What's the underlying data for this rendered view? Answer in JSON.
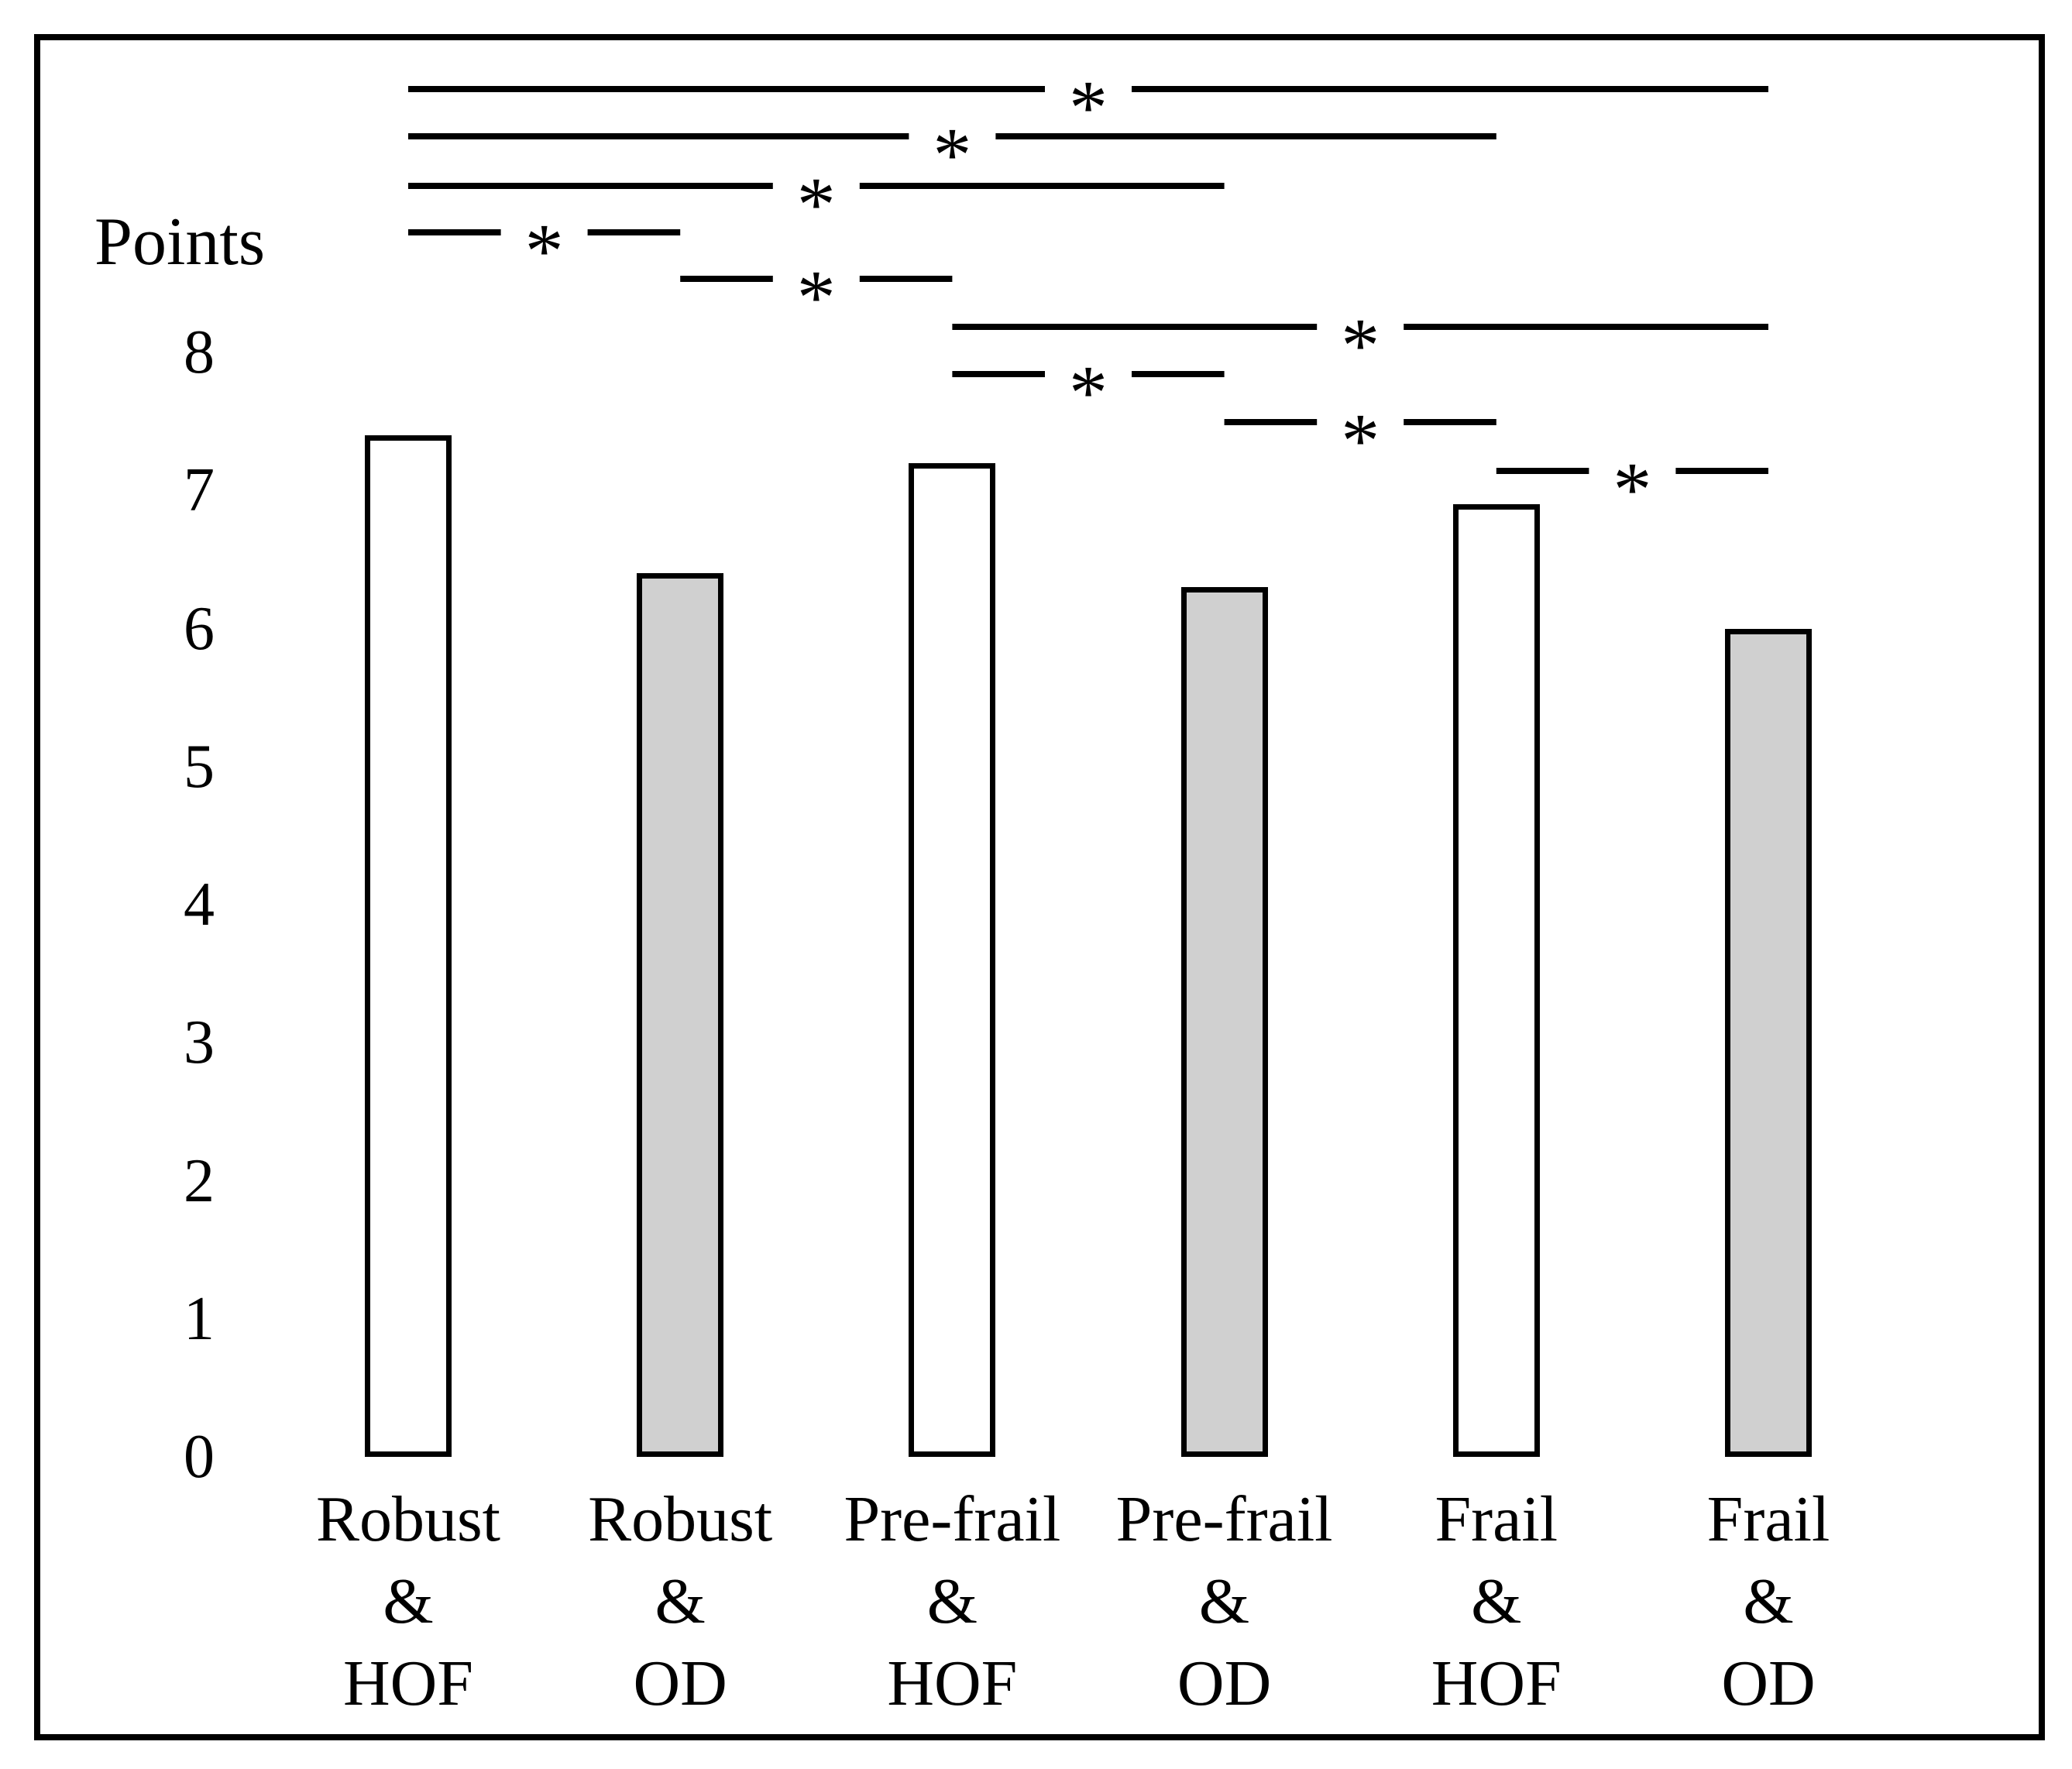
{
  "chart_data": {
    "type": "bar",
    "title": "",
    "ylabel": "Points",
    "ylim": [
      0,
      8
    ],
    "yticks": [
      "0",
      "1",
      "2",
      "3",
      "4",
      "5",
      "6",
      "7",
      "8"
    ],
    "categories": [
      "Robust & HOF",
      "Robust & OD",
      "Pre-frail & HOF",
      "Pre-frail & OD",
      "Frail & HOF",
      "Frail & OD"
    ],
    "category_label_lines": [
      [
        "Robust",
        "&",
        "HOF"
      ],
      [
        "Robust",
        "&",
        "OD"
      ],
      [
        "Pre-frail",
        "&",
        "HOF"
      ],
      [
        "Pre-frail",
        "&",
        "OD"
      ],
      [
        "Frail",
        "&",
        "HOF"
      ],
      [
        "Frail",
        "&",
        "OD"
      ]
    ],
    "series": [
      {
        "name": "Points",
        "values": [
          7.4,
          6.4,
          7.2,
          6.3,
          6.9,
          6.0
        ]
      }
    ],
    "bar_fills": [
      "white",
      "gray",
      "white",
      "gray",
      "white",
      "gray"
    ],
    "colors": {
      "white_bar": "#ffffff",
      "gray_bar": "#d0d0d0",
      "line": "#000000"
    },
    "grid": false,
    "legend": null,
    "significance": [
      {
        "from": 0,
        "to": 5,
        "marker": "*"
      },
      {
        "from": 0,
        "to": 4,
        "marker": "*"
      },
      {
        "from": 0,
        "to": 3,
        "marker": "*"
      },
      {
        "from": 0,
        "to": 1,
        "marker": "*"
      },
      {
        "from": 1,
        "to": 2,
        "marker": "*"
      },
      {
        "from": 2,
        "to": 5,
        "marker": "*"
      },
      {
        "from": 2,
        "to": 3,
        "marker": "*"
      },
      {
        "from": 3,
        "to": 4,
        "marker": "*"
      },
      {
        "from": 4,
        "to": 5,
        "marker": "*"
      }
    ]
  }
}
